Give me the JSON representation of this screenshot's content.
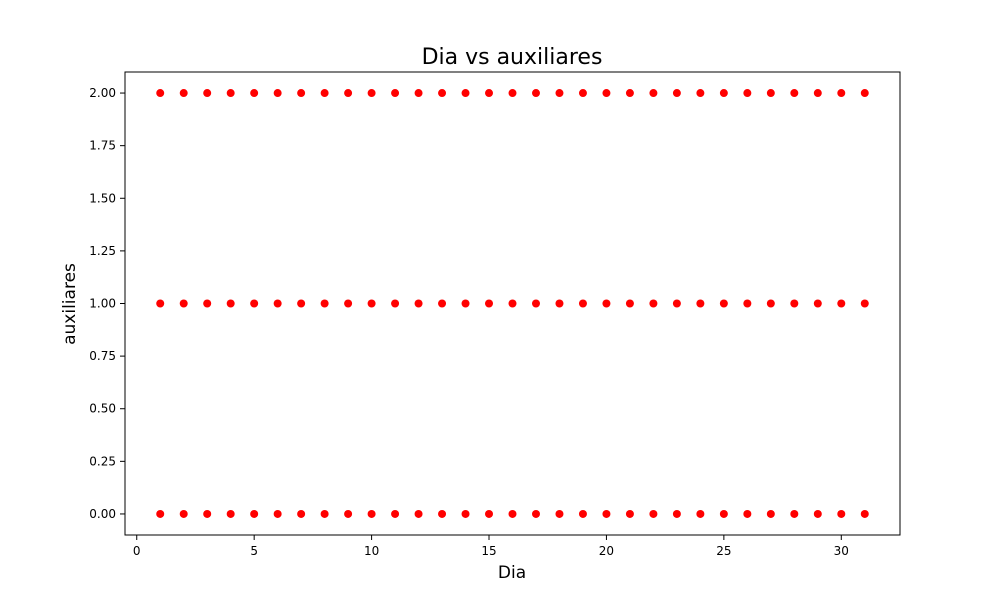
{
  "chart_data": {
    "type": "scatter",
    "title": "Dia vs auxiliares",
    "xlabel": "Dia",
    "ylabel": "auxiliares",
    "xlim": [
      -0.5,
      32.5
    ],
    "ylim": [
      -0.1,
      2.1
    ],
    "xticks": [
      0,
      5,
      10,
      15,
      20,
      25,
      30
    ],
    "xtick_labels": [
      "0",
      "5",
      "10",
      "15",
      "20",
      "25",
      "30"
    ],
    "yticks": [
      0,
      0.25,
      0.5,
      0.75,
      1.0,
      1.25,
      1.5,
      1.75,
      2.0
    ],
    "ytick_labels": [
      "0.00",
      "0.25",
      "0.50",
      "0.75",
      "1.00",
      "1.25",
      "1.50",
      "1.75",
      "2.00"
    ],
    "grid": false,
    "legend": "none",
    "marker_color": "#ff0000",
    "series": [
      {
        "x": [
          1,
          2,
          3,
          4,
          5,
          6,
          7,
          8,
          9,
          10,
          11,
          12,
          13,
          14,
          15,
          16,
          17,
          18,
          19,
          20,
          21,
          22,
          23,
          24,
          25,
          26,
          27,
          28,
          29,
          30,
          31,
          1,
          2,
          3,
          4,
          5,
          6,
          7,
          8,
          9,
          10,
          11,
          12,
          13,
          14,
          15,
          16,
          17,
          18,
          19,
          20,
          21,
          22,
          23,
          24,
          25,
          26,
          27,
          28,
          29,
          30,
          31,
          1,
          2,
          3,
          4,
          5,
          6,
          7,
          8,
          9,
          10,
          11,
          12,
          13,
          14,
          15,
          16,
          17,
          18,
          19,
          20,
          21,
          22,
          23,
          24,
          25,
          26,
          27,
          28,
          29,
          30,
          31
        ],
        "y": [
          2,
          2,
          2,
          2,
          2,
          2,
          2,
          2,
          2,
          2,
          2,
          2,
          2,
          2,
          2,
          2,
          2,
          2,
          2,
          2,
          2,
          2,
          2,
          2,
          2,
          2,
          2,
          2,
          2,
          2,
          2,
          1,
          1,
          1,
          1,
          1,
          1,
          1,
          1,
          1,
          1,
          1,
          1,
          1,
          1,
          1,
          1,
          1,
          1,
          1,
          1,
          1,
          1,
          1,
          1,
          1,
          1,
          1,
          1,
          1,
          1,
          1,
          0,
          0,
          0,
          0,
          0,
          0,
          0,
          0,
          0,
          0,
          0,
          0,
          0,
          0,
          0,
          0,
          0,
          0,
          0,
          0,
          0,
          0,
          0,
          0,
          0,
          0,
          0,
          0,
          0,
          0,
          0
        ]
      }
    ]
  }
}
